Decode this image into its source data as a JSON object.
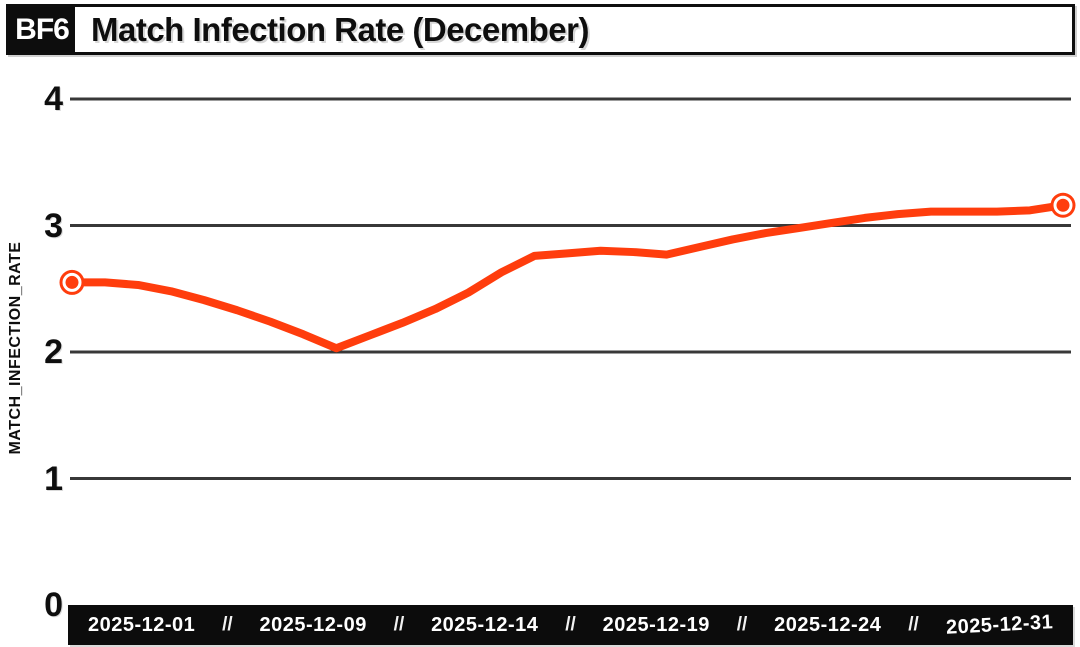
{
  "header": {
    "badge": "BF6",
    "title": "Match Infection Rate (December)"
  },
  "chart_data": {
    "type": "line",
    "title": "Match Infection Rate (December)",
    "series_name": "MATCH_INFECTION_RATE",
    "ylabel": "MATCH_INFECTION_RATE",
    "xlabel": "",
    "ylim": [
      0,
      4
    ],
    "y_ticks": [
      0,
      1,
      2,
      3,
      4
    ],
    "grid": "horizontal",
    "legend": "none",
    "line_color": "#FF3D0D",
    "marker_ring_color": "#FFFFFF",
    "gridline_color": "#383838",
    "markers": "ring markers on first and last points only",
    "x": [
      "2025-12-01",
      "2025-12-02",
      "2025-12-03",
      "2025-12-04",
      "2025-12-05",
      "2025-12-06",
      "2025-12-07",
      "2025-12-08",
      "2025-12-09",
      "2025-12-10",
      "2025-12-11",
      "2025-12-12",
      "2025-12-13",
      "2025-12-14",
      "2025-12-15",
      "2025-12-16",
      "2025-12-17",
      "2025-12-18",
      "2025-12-19",
      "2025-12-20",
      "2025-12-21",
      "2025-12-22",
      "2025-12-23",
      "2025-12-24",
      "2025-12-25",
      "2025-12-26",
      "2025-12-27",
      "2025-12-28",
      "2025-12-29",
      "2025-12-30",
      "2025-12-31"
    ],
    "values": [
      2.55,
      2.55,
      2.53,
      2.48,
      2.41,
      2.33,
      2.24,
      2.14,
      2.03,
      2.13,
      2.23,
      2.34,
      2.47,
      2.63,
      2.76,
      2.78,
      2.8,
      2.79,
      2.77,
      2.83,
      2.89,
      2.94,
      2.98,
      3.02,
      3.06,
      3.09,
      3.11,
      3.11,
      3.11,
      3.12,
      3.16
    ],
    "x_tick_labels": [
      "2025-12-01",
      "2025-12-09",
      "2025-12-14",
      "2025-12-19",
      "2025-12-24",
      "2025-12-31"
    ],
    "x_tick_separator": "//"
  }
}
